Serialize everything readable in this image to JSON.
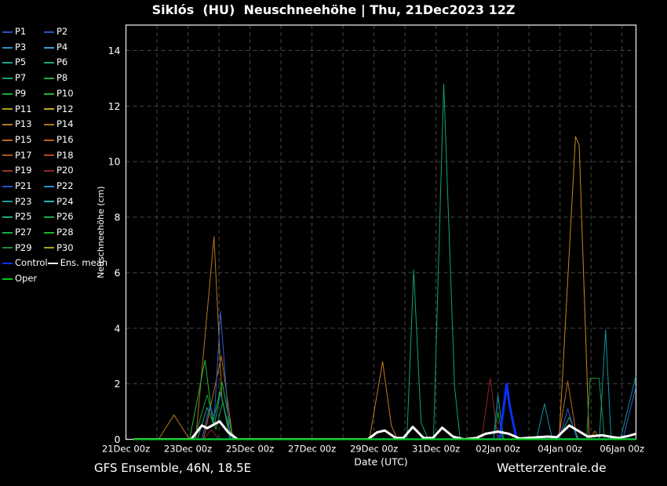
{
  "title": "Siklós  (HU)  Neuschneehöhe | Thu, 21Dec2023 12Z",
  "footer": {
    "left": "GFS Ensemble, 46N, 18.5E",
    "right": "Wetterzentrale.de"
  },
  "legend_rows": [
    [
      {
        "label": "P1",
        "color": "#2851c8"
      },
      {
        "label": "P2",
        "color": "#2851c8"
      }
    ],
    [
      {
        "label": "P3",
        "color": "#2e8cc8"
      },
      {
        "label": "P4",
        "color": "#3c9cd2"
      }
    ],
    [
      {
        "label": "P5",
        "color": "#1ca08c"
      },
      {
        "label": "P6",
        "color": "#1ca878"
      }
    ],
    [
      {
        "label": "P7",
        "color": "#1ca064"
      },
      {
        "label": "P8",
        "color": "#1eae4a"
      }
    ],
    [
      {
        "label": "P9",
        "color": "#1eaa3c"
      },
      {
        "label": "P10",
        "color": "#1eb42a"
      }
    ],
    [
      {
        "label": "P11",
        "color": "#aca01e"
      },
      {
        "label": "P12",
        "color": "#bcaa1e"
      }
    ],
    [
      {
        "label": "P13",
        "color": "#ac7e1e"
      },
      {
        "label": "P14",
        "color": "#b4721e"
      }
    ],
    [
      {
        "label": "P15",
        "color": "#bc6a1c"
      },
      {
        "label": "P16",
        "color": "#c25e1c"
      }
    ],
    [
      {
        "label": "P17",
        "color": "#b2521c"
      },
      {
        "label": "P18",
        "color": "#ae461e"
      }
    ],
    [
      {
        "label": "P19",
        "color": "#9c3228"
      },
      {
        "label": "P20",
        "color": "#8c2828"
      }
    ],
    [
      {
        "label": "P21",
        "color": "#2851c8"
      },
      {
        "label": "P22",
        "color": "#2e8cc8"
      }
    ],
    [
      {
        "label": "P23",
        "color": "#1c9c9c"
      },
      {
        "label": "P24",
        "color": "#28b0b4"
      }
    ],
    [
      {
        "label": "P25",
        "color": "#1ca878"
      },
      {
        "label": "P26",
        "color": "#1ea850"
      }
    ],
    [
      {
        "label": "P27",
        "color": "#1eaa3c"
      },
      {
        "label": "P28",
        "color": "#1eb42a"
      }
    ],
    [
      {
        "label": "P29",
        "color": "#1c8832"
      },
      {
        "label": "P30",
        "color": "#aca01e"
      }
    ],
    [
      {
        "label": "Control",
        "color": "#0830f8"
      },
      {
        "label": "Ens. mean",
        "color": "#ffffff"
      }
    ],
    [
      {
        "label": "Oper",
        "color": "#00c81e"
      }
    ]
  ],
  "chart_data": {
    "type": "line",
    "title": "Siklós  (HU)  Neuschneehöhe | Thu, 21Dec2023 12Z",
    "xlabel": "Date (UTC)",
    "ylabel": "Neuschneehöhe (cm)",
    "x_unit": "days since 21Dec2023 00z",
    "xlim": [
      0,
      16.45
    ],
    "ylim": [
      0,
      14.9
    ],
    "grid": "dashed",
    "yticks": [
      0,
      2,
      4,
      6,
      8,
      10,
      12,
      14
    ],
    "xticks": [
      {
        "day": 0,
        "label": "21Dec 00z"
      },
      {
        "day": 2,
        "label": "23Dec 00z"
      },
      {
        "day": 4,
        "label": "25Dec 00z"
      },
      {
        "day": 6,
        "label": "27Dec 00z"
      },
      {
        "day": 8,
        "label": "29Dec 00z"
      },
      {
        "day": 10,
        "label": "31Dec 00z"
      },
      {
        "day": 12,
        "label": "02Jan 00z"
      },
      {
        "day": 14,
        "label": "04Jan 00z"
      },
      {
        "day": 16,
        "label": "06Jan 00z"
      }
    ],
    "series": [
      {
        "name": "member-orange-a",
        "color": "#b5761e",
        "width": 1,
        "points": [
          [
            0.25,
            0
          ],
          [
            1.05,
            0
          ],
          [
            1.55,
            0.88
          ],
          [
            2.05,
            0
          ],
          [
            2.25,
            0
          ],
          [
            2.84,
            7.3
          ],
          [
            3.1,
            1.4
          ],
          [
            3.35,
            0.3
          ],
          [
            3.6,
            0
          ],
          [
            16.45,
            0
          ]
        ]
      },
      {
        "name": "member-orange-b",
        "color": "#c47a1e",
        "width": 1,
        "points": [
          [
            0.25,
            0
          ],
          [
            7.85,
            0
          ],
          [
            8.28,
            2.8
          ],
          [
            8.56,
            0.5
          ],
          [
            8.76,
            0
          ],
          [
            16.45,
            0
          ]
        ]
      },
      {
        "name": "member-orange-big",
        "color": "#c9881c",
        "width": 1,
        "points": [
          [
            0.25,
            0
          ],
          [
            13.97,
            0
          ],
          [
            14.5,
            10.9
          ],
          [
            14.62,
            10.6
          ],
          [
            14.94,
            0
          ],
          [
            16.45,
            0
          ]
        ]
      },
      {
        "name": "member-orange-c",
        "color": "#bc6a1c",
        "width": 1,
        "points": [
          [
            0.25,
            0
          ],
          [
            2.5,
            0
          ],
          [
            3.08,
            3.0
          ],
          [
            3.45,
            0
          ],
          [
            13.95,
            0
          ],
          [
            14.25,
            2.1
          ],
          [
            14.55,
            0
          ],
          [
            14.97,
            0
          ],
          [
            15.12,
            0.3
          ],
          [
            15.3,
            0
          ],
          [
            16.45,
            0
          ]
        ]
      },
      {
        "name": "member-seagreen-big",
        "color": "#10a078",
        "width": 1,
        "points": [
          [
            0.25,
            0
          ],
          [
            9.06,
            0
          ],
          [
            9.28,
            6.1
          ],
          [
            9.52,
            0.6
          ],
          [
            9.75,
            0
          ],
          [
            9.92,
            0
          ],
          [
            10.25,
            12.8
          ],
          [
            10.6,
            1.9
          ],
          [
            10.78,
            0
          ],
          [
            16.45,
            0
          ]
        ]
      },
      {
        "name": "member-green-bright",
        "color": "#1db93a",
        "width": 1,
        "points": [
          [
            0.25,
            0
          ],
          [
            2.05,
            0
          ],
          [
            2.55,
            2.85
          ],
          [
            2.8,
            0.6
          ],
          [
            3.1,
            2.05
          ],
          [
            3.45,
            0
          ],
          [
            16.45,
            0
          ]
        ]
      },
      {
        "name": "member-green-dark",
        "color": "#1a9933",
        "width": 1,
        "points": [
          [
            0.25,
            0
          ],
          [
            2.2,
            0
          ],
          [
            2.62,
            1.6
          ],
          [
            2.9,
            0.35
          ],
          [
            3.12,
            1.35
          ],
          [
            3.35,
            0
          ],
          [
            11.85,
            0
          ],
          [
            12.0,
            1.0
          ],
          [
            12.15,
            0
          ],
          [
            14.86,
            0
          ],
          [
            14.97,
            2.2
          ],
          [
            15.26,
            2.2
          ],
          [
            15.44,
            0
          ],
          [
            16.45,
            0
          ]
        ]
      },
      {
        "name": "member-teal",
        "color": "#18a089",
        "width": 1,
        "points": [
          [
            0.25,
            0
          ],
          [
            2.3,
            0
          ],
          [
            2.62,
            1.15
          ],
          [
            2.85,
            0.5
          ],
          [
            3.05,
            1.7
          ],
          [
            3.4,
            0
          ],
          [
            13.95,
            0
          ],
          [
            14.3,
            0.8
          ],
          [
            14.6,
            0
          ],
          [
            16.45,
            0
          ]
        ]
      },
      {
        "name": "member-blue",
        "color": "#2a5fd0",
        "width": 1,
        "points": [
          [
            0.25,
            0
          ],
          [
            2.45,
            0
          ],
          [
            2.7,
            1.2
          ],
          [
            2.85,
            0.8
          ],
          [
            3.05,
            4.6
          ],
          [
            3.35,
            0
          ],
          [
            13.97,
            0
          ],
          [
            14.25,
            1.1
          ],
          [
            14.55,
            0
          ],
          [
            16.03,
            0
          ],
          [
            16.45,
            1.9
          ]
        ]
      },
      {
        "name": "member-darkred",
        "color": "#8f2525",
        "width": 1,
        "points": [
          [
            0.25,
            0
          ],
          [
            2.5,
            0
          ],
          [
            2.75,
            0.35
          ],
          [
            3.0,
            0
          ],
          [
            11.47,
            0
          ],
          [
            11.75,
            2.2
          ],
          [
            12.0,
            0
          ],
          [
            16.45,
            0
          ]
        ]
      },
      {
        "name": "member-cyan",
        "color": "#12909e",
        "width": 1,
        "points": [
          [
            0.25,
            0
          ],
          [
            11.85,
            0
          ],
          [
            12.0,
            1.6
          ],
          [
            12.18,
            0
          ],
          [
            13.24,
            0
          ],
          [
            13.5,
            1.28
          ],
          [
            13.75,
            0
          ],
          [
            15.27,
            0
          ],
          [
            15.47,
            3.95
          ],
          [
            15.65,
            0
          ],
          [
            15.95,
            0
          ],
          [
            16.45,
            2.3
          ]
        ]
      },
      {
        "name": "control",
        "color": "#0830f8",
        "width": 3,
        "points": [
          [
            0.25,
            0
          ],
          [
            12.05,
            0
          ],
          [
            12.28,
            2.0
          ],
          [
            12.38,
            1.2
          ],
          [
            12.6,
            0
          ],
          [
            16.45,
            0
          ]
        ]
      },
      {
        "name": "ens-mean",
        "color": "#ffffff",
        "width": 3,
        "points": [
          [
            0.25,
            0
          ],
          [
            2.1,
            0
          ],
          [
            2.45,
            0.5
          ],
          [
            2.62,
            0.4
          ],
          [
            3.02,
            0.65
          ],
          [
            3.3,
            0.25
          ],
          [
            3.6,
            0
          ],
          [
            7.8,
            0
          ],
          [
            8.1,
            0.25
          ],
          [
            8.35,
            0.32
          ],
          [
            8.7,
            0.05
          ],
          [
            8.95,
            0.05
          ],
          [
            9.25,
            0.45
          ],
          [
            9.6,
            0.05
          ],
          [
            9.9,
            0.05
          ],
          [
            10.2,
            0.42
          ],
          [
            10.55,
            0.1
          ],
          [
            10.9,
            0
          ],
          [
            11.3,
            0.05
          ],
          [
            11.6,
            0.2
          ],
          [
            12.0,
            0.28
          ],
          [
            12.35,
            0.2
          ],
          [
            12.7,
            0.03
          ],
          [
            13.3,
            0.08
          ],
          [
            13.6,
            0.1
          ],
          [
            13.9,
            0.08
          ],
          [
            14.3,
            0.5
          ],
          [
            14.6,
            0.3
          ],
          [
            14.9,
            0.1
          ],
          [
            15.1,
            0.12
          ],
          [
            15.35,
            0.15
          ],
          [
            15.6,
            0.1
          ],
          [
            15.9,
            0.05
          ],
          [
            16.2,
            0.12
          ],
          [
            16.45,
            0.2
          ]
        ]
      },
      {
        "name": "oper",
        "color": "#00c81e",
        "width": 2.5,
        "points": [
          [
            0.25,
            0
          ],
          [
            16.45,
            0
          ]
        ]
      }
    ]
  },
  "colors": {
    "background": "#000000",
    "text": "#ffffff",
    "grid": "#464646",
    "border": "#e6e6e6",
    "control": "#0830f8",
    "ens_mean": "#ffffff",
    "oper": "#00c81e"
  }
}
